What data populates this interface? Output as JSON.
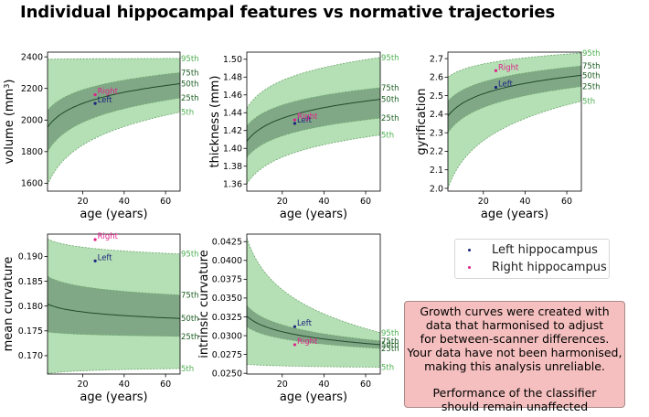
{
  "title": "Individual hippocampal features vs normative trajectories",
  "legend": [
    {
      "label": "Left hippocampus",
      "color": "#1a237e"
    },
    {
      "label": "Right hippocampus",
      "color": "#e0218a"
    }
  ],
  "notice": {
    "paragraph1": "Growth curves were created with\ndata that harmonised to adjust\nfor between-scanner differences.\nYour data have not been harmonised,\nmaking this analysis unreliable.",
    "paragraph2": "Performance of the classifier\nshould remain unaffected",
    "background": "#f4bfbe"
  },
  "colors": {
    "outer_band": "#b5dfb5",
    "inner_band": "#80a886",
    "median": "#1f4a2a",
    "band_edge": "#6aa66a",
    "label_outer": "#4caf50",
    "label_inner": "#1b5e20",
    "left": "#1a237e",
    "right": "#e0218a"
  },
  "chart_data": [
    {
      "type": "area",
      "xlabel": "age (years)",
      "ylabel_main": "volume (mm",
      "ylabel_sup": "3",
      "ylabel_tail": ")",
      "xlim": [
        3,
        67
      ],
      "ylim": [
        1550,
        2430
      ],
      "xticks": [
        20,
        40,
        60
      ],
      "yticks": [
        1600,
        1800,
        2000,
        2200,
        2400
      ],
      "ytick_labels": [
        "1600",
        "1800",
        "2000",
        "2200",
        "2400"
      ],
      "curve": "log",
      "percentiles": [
        {
          "label": "5th",
          "start": 1590,
          "end": 2050
        },
        {
          "label": "25th",
          "start": 1800,
          "end": 2140
        },
        {
          "label": "50th",
          "start": 1955,
          "end": 2230
        },
        {
          "label": "75th",
          "start": 2060,
          "end": 2300
        },
        {
          "label": "95th",
          "start": 2385,
          "end": 2390
        }
      ],
      "points": [
        {
          "name": "Left",
          "x": 26,
          "y": 2105
        },
        {
          "name": "Right",
          "x": 26,
          "y": 2160
        }
      ]
    },
    {
      "type": "area",
      "xlabel": "age (years)",
      "ylabel_main": "thickness (mm)",
      "ylabel_sup": "",
      "ylabel_tail": "",
      "xlim": [
        3,
        67
      ],
      "ylim": [
        1.352,
        1.508
      ],
      "xticks": [
        20,
        40,
        60
      ],
      "yticks": [
        1.36,
        1.38,
        1.4,
        1.42,
        1.44,
        1.46,
        1.48,
        1.5
      ],
      "ytick_labels": [
        "1.36",
        "1.38",
        "1.40",
        "1.42",
        "1.44",
        "1.46",
        "1.48",
        "1.50"
      ],
      "curve": "log",
      "percentiles": [
        {
          "label": "5th",
          "start": 1.36,
          "end": 1.415
        },
        {
          "label": "25th",
          "start": 1.39,
          "end": 1.434
        },
        {
          "label": "50th",
          "start": 1.408,
          "end": 1.455
        },
        {
          "label": "75th",
          "start": 1.425,
          "end": 1.468
        },
        {
          "label": "95th",
          "start": 1.445,
          "end": 1.502
        }
      ],
      "points": [
        {
          "name": "Left",
          "x": 26,
          "y": 1.428
        },
        {
          "name": "Right",
          "x": 26,
          "y": 1.432
        }
      ]
    },
    {
      "type": "area",
      "xlabel": "age (years)",
      "ylabel_main": "gyrification",
      "ylabel_sup": "",
      "ylabel_tail": "",
      "xlim": [
        3,
        67
      ],
      "ylim": [
        1.985,
        2.735
      ],
      "xticks": [
        20,
        40,
        60
      ],
      "yticks": [
        2.0,
        2.1,
        2.2,
        2.3,
        2.4,
        2.5,
        2.6,
        2.7
      ],
      "ytick_labels": [
        "2.0",
        "2.1",
        "2.2",
        "2.3",
        "2.4",
        "2.5",
        "2.6",
        "2.7"
      ],
      "curve": "log",
      "percentiles": [
        {
          "label": "5th",
          "start": 2.0,
          "end": 2.47
        },
        {
          "label": "25th",
          "start": 2.3,
          "end": 2.55
        },
        {
          "label": "50th",
          "start": 2.39,
          "end": 2.61
        },
        {
          "label": "75th",
          "start": 2.47,
          "end": 2.66
        },
        {
          "label": "95th",
          "start": 2.6,
          "end": 2.73
        }
      ],
      "points": [
        {
          "name": "Left",
          "x": 26,
          "y": 2.545
        },
        {
          "name": "Right",
          "x": 26,
          "y": 2.635
        }
      ]
    },
    {
      "type": "area",
      "xlabel": "age (years)",
      "ylabel_main": "mean curvature",
      "ylabel_sup": "",
      "ylabel_tail": "",
      "xlim": [
        3,
        67
      ],
      "ylim": [
        0.1663,
        0.1945
      ],
      "xticks": [
        20,
        40,
        60
      ],
      "yticks": [
        0.17,
        0.175,
        0.18,
        0.185,
        0.19
      ],
      "ytick_labels": [
        "0.170",
        "0.175",
        "0.180",
        "0.185",
        "0.190"
      ],
      "curve": "log",
      "percentiles": [
        {
          "label": "5th",
          "start": 0.1664,
          "end": 0.1674
        },
        {
          "label": "25th",
          "start": 0.1748,
          "end": 0.1739
        },
        {
          "label": "50th",
          "start": 0.1804,
          "end": 0.1775
        },
        {
          "label": "75th",
          "start": 0.186,
          "end": 0.1822
        },
        {
          "label": "95th",
          "start": 0.1935,
          "end": 0.1905
        }
      ],
      "points": [
        {
          "name": "Left",
          "x": 26,
          "y": 0.1891
        },
        {
          "name": "Right",
          "x": 26,
          "y": 0.1934
        }
      ]
    },
    {
      "type": "area",
      "xlabel": "age (years)",
      "ylabel_main": "intrinsic curvature",
      "ylabel_sup": "",
      "ylabel_tail": "",
      "xlim": [
        3,
        67
      ],
      "ylim": [
        0.0249,
        0.0435
      ],
      "xticks": [
        20,
        40,
        60
      ],
      "yticks": [
        0.025,
        0.0275,
        0.03,
        0.0325,
        0.035,
        0.0375,
        0.04,
        0.0425
      ],
      "ytick_labels": [
        "0.0250",
        "0.0275",
        "0.0300",
        "0.0325",
        "0.0350",
        "0.0375",
        "0.0400",
        "0.0425"
      ],
      "curve": "log",
      "percentiles": [
        {
          "label": "5th",
          "start": 0.0262,
          "end": 0.0258
        },
        {
          "label": "25th",
          "start": 0.0312,
          "end": 0.0283
        },
        {
          "label": "50th",
          "start": 0.0326,
          "end": 0.0288
        },
        {
          "label": "75th",
          "start": 0.034,
          "end": 0.0293
        },
        {
          "label": "95th",
          "start": 0.043,
          "end": 0.0304
        }
      ],
      "points": [
        {
          "name": "Left",
          "x": 26,
          "y": 0.0312
        },
        {
          "name": "Right",
          "x": 26,
          "y": 0.0288
        }
      ]
    }
  ]
}
